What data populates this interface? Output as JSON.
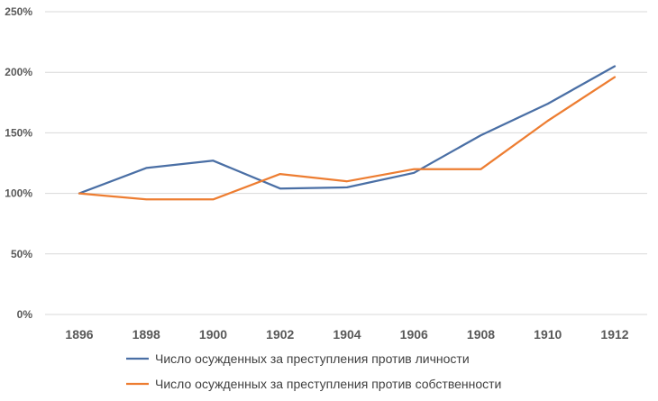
{
  "chart_data": {
    "type": "line",
    "x": [
      "1896",
      "1898",
      "1900",
      "1902",
      "1904",
      "1906",
      "1908",
      "1910",
      "1912"
    ],
    "series": [
      {
        "name": "Число осужденных за преступления против личности",
        "color": "#4a6fa5",
        "values": [
          100,
          121,
          127,
          104,
          105,
          117,
          148,
          174,
          205
        ]
      },
      {
        "name": "Число осужденных за преступления против собственности",
        "color": "#ed7d31",
        "values": [
          100,
          95,
          95,
          116,
          110,
          120,
          120,
          160,
          196
        ]
      }
    ],
    "ylim": [
      0,
      250
    ],
    "yticks": [
      0,
      50,
      100,
      150,
      200,
      250
    ],
    "ytick_labels": [
      "0%",
      "50%",
      "100%",
      "150%",
      "200%",
      "250%"
    ],
    "grid": true,
    "legend_position": "bottom"
  }
}
